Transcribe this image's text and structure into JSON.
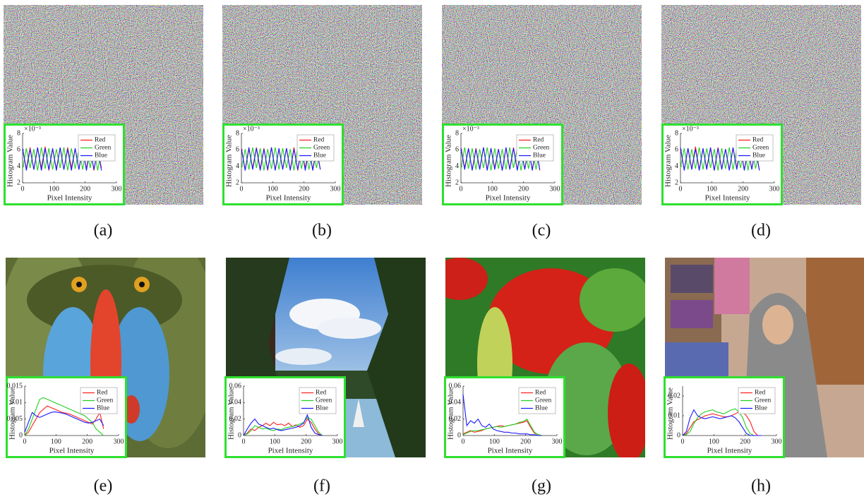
{
  "chart_data": [
    {
      "type": "line",
      "caption": "(a)",
      "x_label": "Pixel Intensity",
      "y_label": "Histogram Value",
      "y_multiplier": "×10⁻³",
      "legend": "upper right",
      "x": [
        0,
        12,
        24,
        36,
        48,
        60,
        72,
        84,
        96,
        108,
        120,
        132,
        144,
        156,
        168,
        180,
        192,
        204,
        216,
        228,
        240,
        252
      ],
      "xlim": [
        0,
        300
      ],
      "xticks": [
        0,
        100,
        200,
        300
      ],
      "ylim": [
        2,
        8
      ],
      "yticks": [
        2,
        4,
        6,
        8
      ],
      "series": [
        {
          "name": "Red",
          "color": "#ff2020",
          "values": [
            6.1,
            3.7,
            6.3,
            3.6,
            6.2,
            3.8,
            6.4,
            3.5,
            6.1,
            3.7,
            6.2,
            3.6,
            6.3,
            3.8,
            6.1,
            3.6,
            6.2,
            3.7,
            6.3,
            3.5,
            6.1,
            3.8
          ]
        },
        {
          "name": "Green",
          "color": "#20d020",
          "values": [
            3.6,
            6.2,
            3.8,
            6.1,
            3.5,
            6.3,
            3.7,
            6.2,
            3.6,
            6.1,
            3.8,
            6.3,
            3.5,
            6.2,
            3.7,
            6.1,
            3.6,
            6.3,
            3.8,
            6.2,
            3.5,
            6.1
          ]
        },
        {
          "name": "Blue",
          "color": "#1a1aff",
          "values": [
            6.2,
            3.5,
            6.1,
            3.6,
            6.3,
            3.5,
            6.2,
            3.6,
            6.2,
            3.5,
            6.3,
            3.6,
            6.1,
            3.5,
            6.2,
            3.6,
            6.3,
            3.5,
            6.2,
            3.6,
            6.1,
            3.5
          ]
        }
      ]
    },
    {
      "type": "line",
      "caption": "(b)",
      "x_label": "Pixel Intensity",
      "y_label": "Histogram Value",
      "y_multiplier": "×10⁻³",
      "legend": "upper right",
      "x": [
        0,
        12,
        24,
        36,
        48,
        60,
        72,
        84,
        96,
        108,
        120,
        132,
        144,
        156,
        168,
        180,
        192,
        204,
        216,
        228,
        240,
        252
      ],
      "xlim": [
        0,
        300
      ],
      "xticks": [
        0,
        100,
        200,
        300
      ],
      "ylim": [
        2,
        8
      ],
      "yticks": [
        2,
        4,
        6,
        8
      ],
      "series": [
        {
          "name": "Red",
          "color": "#ff2020",
          "values": [
            6.2,
            3.6,
            6.1,
            3.8,
            6.3,
            3.7,
            6.2,
            3.5,
            6.3,
            3.6,
            6.1,
            3.7,
            6.2,
            3.6,
            6.3,
            3.5,
            6.1,
            3.8,
            6.2,
            3.6,
            6.3,
            3.7
          ]
        },
        {
          "name": "Green",
          "color": "#20d020",
          "values": [
            3.7,
            6.1,
            3.6,
            6.3,
            3.8,
            6.2,
            3.5,
            6.1,
            3.7,
            6.3,
            3.6,
            6.2,
            3.8,
            6.1,
            3.5,
            6.3,
            3.7,
            6.2,
            3.6,
            6.1,
            3.8,
            6.2
          ]
        },
        {
          "name": "Blue",
          "color": "#1a1aff",
          "values": [
            6.1,
            3.5,
            6.3,
            3.6,
            6.2,
            3.5,
            6.1,
            3.6,
            6.3,
            3.5,
            6.2,
            3.6,
            6.2,
            3.5,
            6.1,
            3.6,
            6.3,
            3.5,
            6.2,
            3.5,
            6.1,
            3.6
          ]
        }
      ]
    },
    {
      "type": "line",
      "caption": "(c)",
      "x_label": "Pixel Intensity",
      "y_label": "Histogram Value",
      "y_multiplier": "×10⁻³",
      "legend": "upper right",
      "x": [
        0,
        12,
        24,
        36,
        48,
        60,
        72,
        84,
        96,
        108,
        120,
        132,
        144,
        156,
        168,
        180,
        192,
        204,
        216,
        228,
        240,
        252
      ],
      "xlim": [
        0,
        300
      ],
      "xticks": [
        0,
        100,
        200,
        300
      ],
      "ylim": [
        2,
        8
      ],
      "yticks": [
        2,
        4,
        6,
        8
      ],
      "series": [
        {
          "name": "Red",
          "color": "#ff2020",
          "values": [
            6.3,
            3.8,
            6.1,
            3.6,
            6.2,
            3.7,
            6.3,
            3.6,
            6.2,
            3.8,
            6.1,
            3.5,
            6.2,
            3.7,
            6.3,
            3.6,
            6.1,
            3.7,
            6.2,
            3.6,
            6.3,
            3.5
          ]
        },
        {
          "name": "Green",
          "color": "#20d020",
          "values": [
            3.6,
            6.3,
            3.7,
            6.2,
            3.6,
            6.1,
            3.8,
            6.3,
            3.5,
            6.2,
            3.7,
            6.1,
            3.6,
            6.3,
            3.8,
            6.2,
            3.5,
            6.1,
            3.7,
            6.3,
            3.6,
            6.2
          ]
        },
        {
          "name": "Blue",
          "color": "#1a1aff",
          "values": [
            6.2,
            3.6,
            6.2,
            3.5,
            6.1,
            3.6,
            6.3,
            3.5,
            6.2,
            3.6,
            6.1,
            3.5,
            6.3,
            3.6,
            6.2,
            3.5,
            6.1,
            3.6,
            6.3,
            3.5,
            6.2,
            3.6
          ]
        }
      ]
    },
    {
      "type": "line",
      "caption": "(d)",
      "x_label": "Pixel Intensity",
      "y_label": "Histogram Value",
      "y_multiplier": "×10⁻³",
      "legend": "upper right",
      "x": [
        0,
        12,
        24,
        36,
        48,
        60,
        72,
        84,
        96,
        108,
        120,
        132,
        144,
        156,
        168,
        180,
        192,
        204,
        216,
        228,
        240,
        252
      ],
      "xlim": [
        0,
        300
      ],
      "xticks": [
        0,
        100,
        200,
        300
      ],
      "ylim": [
        2,
        8
      ],
      "yticks": [
        2,
        4,
        6,
        8
      ],
      "series": [
        {
          "name": "Red",
          "color": "#ff2020",
          "values": [
            6.1,
            3.6,
            6.2,
            3.7,
            6.4,
            3.6,
            6.1,
            3.8,
            6.2,
            3.5,
            6.3,
            3.7,
            6.1,
            3.6,
            6.2,
            3.8,
            6.3,
            3.6,
            6.1,
            3.7,
            6.2,
            3.6
          ]
        },
        {
          "name": "Green",
          "color": "#20d020",
          "values": [
            3.8,
            6.2,
            3.6,
            6.1,
            3.7,
            6.3,
            3.6,
            6.2,
            3.8,
            6.1,
            3.5,
            6.2,
            3.7,
            6.3,
            3.6,
            6.1,
            3.8,
            6.2,
            3.5,
            6.3,
            3.7,
            6.1
          ]
        },
        {
          "name": "Blue",
          "color": "#1a1aff",
          "values": [
            6.3,
            3.5,
            6.2,
            3.6,
            6.1,
            3.5,
            6.2,
            3.6,
            6.3,
            3.5,
            6.2,
            3.6,
            6.1,
            3.5,
            6.3,
            3.6,
            6.2,
            3.5,
            6.1,
            3.6,
            6.2,
            3.5
          ]
        }
      ]
    },
    {
      "type": "line",
      "caption": "(e)",
      "x_label": "Pixel Intensity",
      "y_label": "Histogram Value",
      "legend": "upper right",
      "x": [
        0,
        12,
        24,
        36,
        48,
        60,
        72,
        84,
        96,
        108,
        120,
        132,
        144,
        156,
        168,
        180,
        192,
        204,
        216,
        228,
        240,
        252
      ],
      "xlim": [
        0,
        300
      ],
      "xticks": [
        0,
        100,
        200,
        300
      ],
      "ylim": [
        0,
        0.015
      ],
      "yticks": [
        0,
        0.005,
        0.01,
        0.015
      ],
      "series": [
        {
          "name": "Red",
          "color": "#ff2020",
          "values": [
            0,
            0.001,
            0.003,
            0.005,
            0.007,
            0.008,
            0.009,
            0.0085,
            0.008,
            0.0075,
            0.007,
            0.0068,
            0.0065,
            0.006,
            0.0055,
            0.005,
            0.0045,
            0.004,
            0.0035,
            0.005,
            0.007,
            0.002
          ]
        },
        {
          "name": "Green",
          "color": "#20d020",
          "values": [
            0,
            0.002,
            0.005,
            0.008,
            0.011,
            0.0115,
            0.011,
            0.0105,
            0.01,
            0.0095,
            0.009,
            0.0085,
            0.008,
            0.0075,
            0.007,
            0.0065,
            0.006,
            0.005,
            0.004,
            0.002,
            0.001,
            0
          ]
        },
        {
          "name": "Blue",
          "color": "#1a1aff",
          "values": [
            0.001,
            0.004,
            0.007,
            0.006,
            0.0055,
            0.006,
            0.0065,
            0.007,
            0.0072,
            0.007,
            0.0068,
            0.0065,
            0.006,
            0.0055,
            0.005,
            0.0045,
            0.004,
            0.0038,
            0.004,
            0.0045,
            0.005,
            0.003
          ]
        }
      ]
    },
    {
      "type": "line",
      "caption": "(f)",
      "x_label": "Pixel Intensity",
      "y_label": "Histogram Value",
      "legend": "upper right",
      "x": [
        0,
        12,
        24,
        36,
        48,
        60,
        72,
        84,
        96,
        108,
        120,
        132,
        144,
        156,
        168,
        180,
        192,
        204,
        216,
        228,
        240,
        252
      ],
      "xlim": [
        0,
        300
      ],
      "xticks": [
        0,
        100,
        200,
        300
      ],
      "ylim": [
        0,
        0.06
      ],
      "yticks": [
        0,
        0.02,
        0.04,
        0.06
      ],
      "series": [
        {
          "name": "Red",
          "color": "#ff2020",
          "values": [
            0,
            0.003,
            0.008,
            0.006,
            0.01,
            0.012,
            0.015,
            0.012,
            0.016,
            0.013,
            0.014,
            0.012,
            0.015,
            0.011,
            0.013,
            0.01,
            0.012,
            0.02,
            0.016,
            0.008,
            0.002,
            0
          ]
        },
        {
          "name": "Green",
          "color": "#20d020",
          "values": [
            0,
            0.002,
            0.006,
            0.012,
            0.01,
            0.008,
            0.009,
            0.007,
            0.006,
            0.008,
            0.007,
            0.009,
            0.01,
            0.011,
            0.012,
            0.014,
            0.016,
            0.022,
            0.02,
            0.012,
            0.004,
            0
          ]
        },
        {
          "name": "Blue",
          "color": "#1a1aff",
          "values": [
            0,
            0.008,
            0.015,
            0.02,
            0.014,
            0.012,
            0.01,
            0.008,
            0.009,
            0.007,
            0.006,
            0.007,
            0.008,
            0.009,
            0.01,
            0.012,
            0.015,
            0.025,
            0.01,
            0.003,
            0.001,
            0
          ]
        }
      ]
    },
    {
      "type": "line",
      "caption": "(g)",
      "x_label": "Pixel Intensity",
      "y_label": "Histogram Value",
      "legend": "upper right",
      "x": [
        0,
        12,
        24,
        36,
        48,
        60,
        72,
        84,
        96,
        108,
        120,
        132,
        144,
        156,
        168,
        180,
        192,
        204,
        216,
        228,
        240,
        252
      ],
      "xlim": [
        0,
        300
      ],
      "xticks": [
        0,
        100,
        200,
        300
      ],
      "ylim": [
        0,
        0.06
      ],
      "yticks": [
        0,
        0.02,
        0.04,
        0.06
      ],
      "series": [
        {
          "name": "Red",
          "color": "#ff2020",
          "values": [
            0.002,
            0.004,
            0.006,
            0.004,
            0.005,
            0.006,
            0.008,
            0.009,
            0.01,
            0.011,
            0.012,
            0.011,
            0.012,
            0.013,
            0.014,
            0.015,
            0.016,
            0.018,
            0.01,
            0.003,
            0.001,
            0
          ]
        },
        {
          "name": "Green",
          "color": "#20d020",
          "values": [
            0.001,
            0.003,
            0.005,
            0.006,
            0.006,
            0.007,
            0.008,
            0.009,
            0.01,
            0.011,
            0.01,
            0.011,
            0.012,
            0.013,
            0.014,
            0.016,
            0.017,
            0.02,
            0.012,
            0.004,
            0.001,
            0
          ]
        },
        {
          "name": "Blue",
          "color": "#1a1aff",
          "values": [
            0.05,
            0.012,
            0.018,
            0.015,
            0.02,
            0.012,
            0.01,
            0.014,
            0.008,
            0.006,
            0.005,
            0.004,
            0.004,
            0.003,
            0.003,
            0.002,
            0.002,
            0.002,
            0.001,
            0.001,
            0,
            0
          ]
        }
      ]
    },
    {
      "type": "line",
      "caption": "(h)",
      "x_label": "Pixel Intensity",
      "y_label": "Histogram Value",
      "legend": "upper right",
      "x": [
        0,
        12,
        24,
        36,
        48,
        60,
        72,
        84,
        96,
        108,
        120,
        132,
        144,
        156,
        168,
        180,
        192,
        204,
        216,
        228,
        240,
        252
      ],
      "xlim": [
        0,
        300
      ],
      "xticks": [
        0,
        100,
        200,
        300
      ],
      "ylim": [
        0,
        0.025
      ],
      "yticks": [
        0,
        0.01,
        0.02
      ],
      "series": [
        {
          "name": "Red",
          "color": "#ff2020",
          "values": [
            0,
            0.001,
            0.004,
            0.007,
            0.008,
            0.009,
            0.01,
            0.0105,
            0.011,
            0.0105,
            0.01,
            0.0095,
            0.0095,
            0.01,
            0.011,
            0.012,
            0.012,
            0.01,
            0.007,
            0.002,
            0,
            0
          ]
        },
        {
          "name": "Green",
          "color": "#20d020",
          "values": [
            0,
            0.0005,
            0.002,
            0.006,
            0.009,
            0.011,
            0.012,
            0.0125,
            0.013,
            0.012,
            0.0115,
            0.011,
            0.012,
            0.013,
            0.0135,
            0.012,
            0.009,
            0.004,
            0.001,
            0,
            0,
            0
          ]
        },
        {
          "name": "Blue",
          "color": "#1a1aff",
          "values": [
            0,
            0.002,
            0.009,
            0.013,
            0.01,
            0.009,
            0.0085,
            0.009,
            0.0095,
            0.009,
            0.0085,
            0.009,
            0.0095,
            0.01,
            0.009,
            0.007,
            0.004,
            0.001,
            0,
            0,
            0,
            0
          ]
        }
      ]
    }
  ]
}
